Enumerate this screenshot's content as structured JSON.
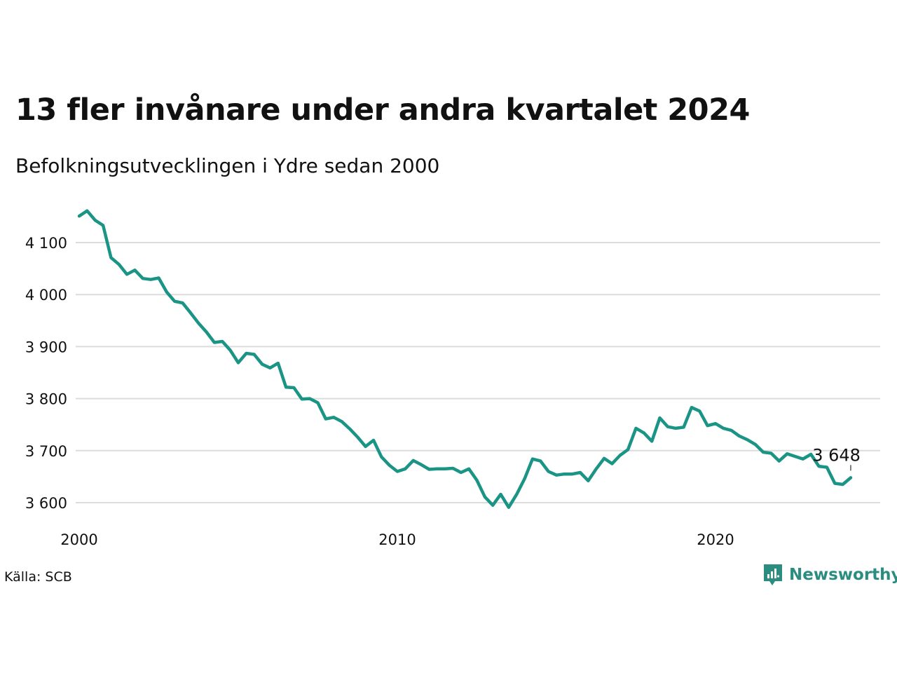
{
  "title": "13 fler invånare under andra kvartalet 2024",
  "subtitle": "Befolkningsutvecklingen i Ydre sedan 2000",
  "source": "Källa: SCB",
  "brand": {
    "name": "Newsworthy",
    "icon": "newsworthy-logo-icon",
    "color": "#2a8d80"
  },
  "colors": {
    "line": "#1a9485",
    "grid": "#dcdcdc"
  },
  "chart_data": {
    "type": "line",
    "title": "13 fler invånare under andra kvartalet 2024",
    "subtitle": "Befolkningsutvecklingen i Ydre sedan 2000",
    "xlabel": "",
    "ylabel": "",
    "xlim": [
      2000,
      2025
    ],
    "ylim": [
      3560,
      4170
    ],
    "x_ticks": [
      2000,
      2010,
      2020
    ],
    "x_tick_labels": [
      "2000",
      "2010",
      "2020"
    ],
    "y_ticks": [
      3600,
      3700,
      3800,
      3900,
      4000,
      4100
    ],
    "y_tick_labels": [
      "3 600",
      "3 700",
      "3 800",
      "3 900",
      "4 000",
      "4 100"
    ],
    "grid": "horizontal",
    "end_label": "3 648",
    "series": [
      {
        "x": [
          2000.0,
          2000.25,
          2000.5,
          2000.75,
          2001.0,
          2001.25,
          2001.5,
          2001.75,
          2002.0,
          2002.25,
          2002.5,
          2002.75,
          2003.0,
          2003.25,
          2003.5,
          2003.75,
          2004.0,
          2004.25,
          2004.5,
          2004.75,
          2005.0,
          2005.25,
          2005.5,
          2005.75,
          2006.0,
          2006.25,
          2006.5,
          2006.75,
          2007.0,
          2007.25,
          2007.5,
          2007.75,
          2008.0,
          2008.25,
          2008.5,
          2008.75,
          2009.0,
          2009.25,
          2009.5,
          2009.75,
          2010.0,
          2010.25,
          2010.5,
          2010.75,
          2011.0,
          2011.25,
          2011.5,
          2011.75,
          2012.0,
          2012.25,
          2012.5,
          2012.75,
          2013.0,
          2013.25,
          2013.5,
          2013.75,
          2014.0,
          2014.25,
          2014.5,
          2014.75,
          2015.0,
          2015.25,
          2015.5,
          2015.75,
          2016.0,
          2016.25,
          2016.5,
          2016.75,
          2017.0,
          2017.25,
          2017.5,
          2017.75,
          2018.0,
          2018.25,
          2018.5,
          2018.75,
          2019.0,
          2019.25,
          2019.5,
          2019.75,
          2020.0,
          2020.25,
          2020.5,
          2020.75,
          2021.0,
          2021.25,
          2021.5,
          2021.75,
          2022.0,
          2022.25,
          2022.5,
          2022.75,
          2023.0,
          2023.25,
          2023.5,
          2023.75,
          2024.0,
          2024.25
        ],
        "y": [
          4151,
          4161,
          4143,
          4133,
          4071,
          4058,
          4039,
          4047,
          4031,
          4029,
          4032,
          4005,
          3987,
          3984,
          3965,
          3945,
          3928,
          3908,
          3910,
          3893,
          3869,
          3887,
          3885,
          3866,
          3859,
          3868,
          3822,
          3821,
          3799,
          3800,
          3792,
          3761,
          3764,
          3756,
          3742,
          3726,
          3708,
          3720,
          3688,
          3672,
          3660,
          3665,
          3681,
          3673,
          3664,
          3665,
          3665,
          3666,
          3658,
          3665,
          3643,
          3611,
          3595,
          3616,
          3591,
          3616,
          3646,
          3684,
          3680,
          3660,
          3653,
          3655,
          3655,
          3658,
          3642,
          3665,
          3685,
          3675,
          3691,
          3702,
          3743,
          3734,
          3718,
          3763,
          3746,
          3743,
          3745,
          3783,
          3776,
          3748,
          3752,
          3743,
          3739,
          3728,
          3721,
          3712,
          3697,
          3695,
          3680,
          3694,
          3689,
          3684,
          3693,
          3670,
          3668,
          3637,
          3635,
          3648
        ]
      }
    ]
  }
}
